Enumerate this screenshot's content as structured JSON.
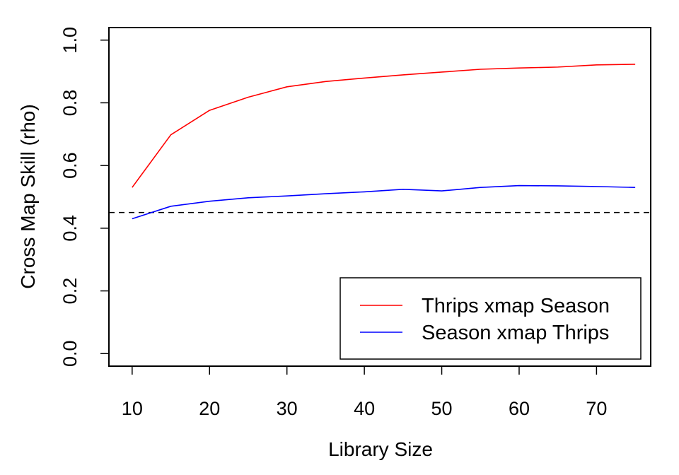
{
  "chart_data": {
    "type": "line",
    "title": "",
    "xlabel": "Library Size",
    "ylabel": "Cross Map Skill (rho)",
    "xlim": [
      7,
      77
    ],
    "ylim": [
      -0.04,
      1.04
    ],
    "x_ticks": [
      10,
      20,
      30,
      40,
      50,
      60,
      70
    ],
    "x_tick_labels": [
      "10",
      "20",
      "30",
      "40",
      "50",
      "60",
      "70"
    ],
    "y_ticks": [
      0.0,
      0.2,
      0.4,
      0.6,
      0.8,
      1.0
    ],
    "y_tick_labels": [
      "0.0",
      "0.2",
      "0.4",
      "0.6",
      "0.8",
      "1.0"
    ],
    "grid": false,
    "legend_position": "bottom-right",
    "x": [
      10,
      15,
      20,
      25,
      30,
      35,
      40,
      45,
      50,
      55,
      60,
      65,
      70,
      75
    ],
    "series": [
      {
        "name": "Thrips xmap Season",
        "color": "#ff0000",
        "values": [
          0.53,
          0.698,
          0.776,
          0.818,
          0.851,
          0.868,
          0.879,
          0.889,
          0.898,
          0.907,
          0.911,
          0.914,
          0.921,
          0.923
        ]
      },
      {
        "name": "Season xmap Thrips",
        "color": "#0000ff",
        "values": [
          0.43,
          0.47,
          0.486,
          0.497,
          0.503,
          0.51,
          0.516,
          0.524,
          0.519,
          0.53,
          0.536,
          0.535,
          0.533,
          0.53
        ]
      }
    ],
    "reference_line": {
      "y": 0.45,
      "style": "dashed",
      "color": "#000000"
    }
  }
}
